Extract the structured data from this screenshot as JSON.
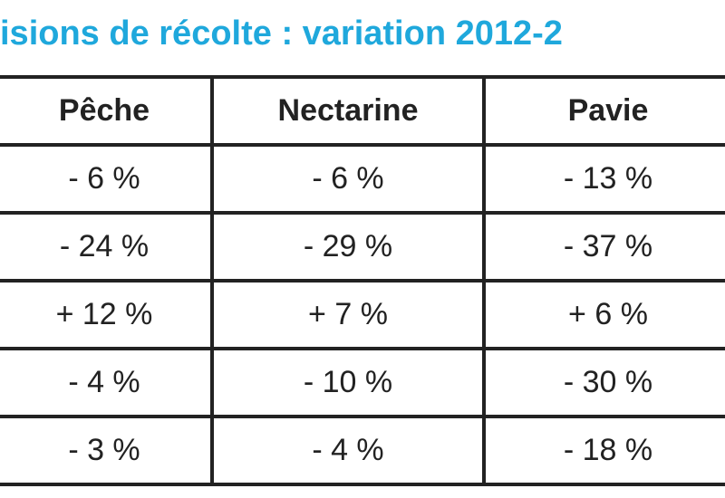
{
  "title": "isions de récolte : variation 2012-2",
  "table": {
    "headers": [
      "Pêche",
      "Nectarine",
      "Pavie"
    ],
    "rows": [
      [
        "- 6 %",
        "- 6 %",
        "- 13 %"
      ],
      [
        "- 24 %",
        "- 29 %",
        "- 37 %"
      ],
      [
        "+ 12 %",
        "+ 7 %",
        "+ 6 %"
      ],
      [
        "- 4 %",
        "- 10 %",
        "- 30 %"
      ],
      [
        "- 3 %",
        "- 4 %",
        "- 18 %"
      ]
    ]
  },
  "colors": {
    "title": "#1fa8dc",
    "text": "#222222",
    "border": "#222222",
    "background": "#ffffff"
  }
}
